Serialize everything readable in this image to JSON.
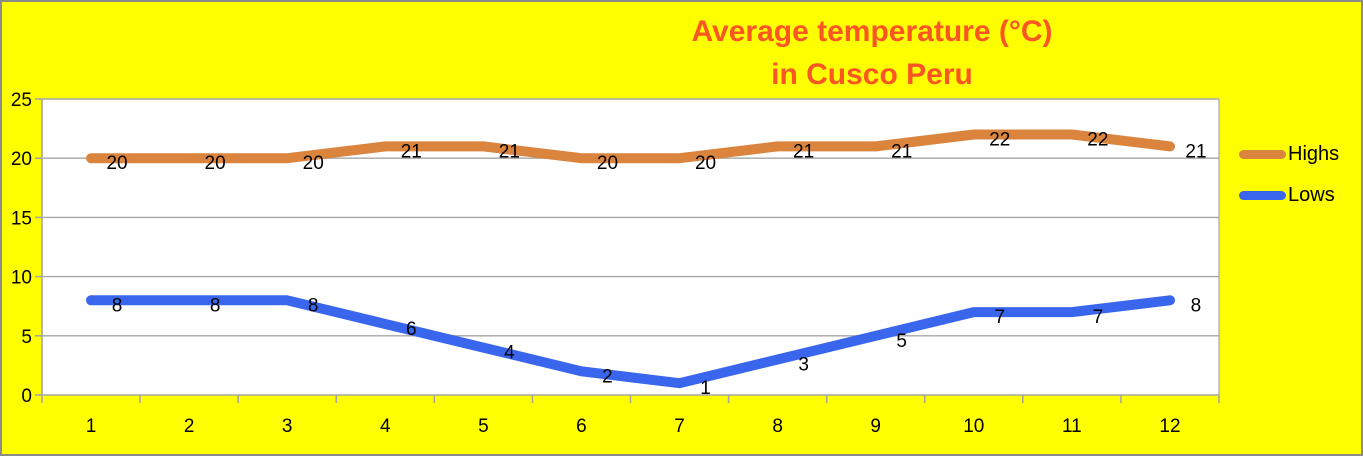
{
  "chart_data": {
    "type": "line",
    "title_lines": [
      "Average temperature (°C)",
      "in Cusco Peru"
    ],
    "title": "Average temperature (°C) in Cusco Peru",
    "categories": [
      "1",
      "2",
      "3",
      "4",
      "5",
      "6",
      "7",
      "8",
      "9",
      "10",
      "11",
      "12"
    ],
    "series": [
      {
        "name": "Highs",
        "color": "#DB843D",
        "values": [
          20,
          20,
          20,
          21,
          21,
          20,
          20,
          21,
          21,
          22,
          22,
          21
        ]
      },
      {
        "name": "Lows",
        "color": "#3A66ED",
        "values": [
          8,
          8,
          8,
          6,
          4,
          2,
          1,
          3,
          5,
          7,
          7,
          8
        ]
      }
    ],
    "yticks": [
      0,
      5,
      10,
      15,
      20,
      25
    ],
    "ylim": [
      0,
      25
    ],
    "xlabel": "",
    "ylabel": "",
    "grid": true,
    "data_labels": true,
    "legend_position": "right"
  },
  "colors": {
    "background": "#FFFF00",
    "frame_border": "#8C8C8C",
    "title": "#FA5523",
    "plot_background": "#FFFFFF",
    "gridline": "#A6A6A6",
    "axis_line": "#A6A6A6",
    "tick_label": "#000000",
    "data_label": "#000000",
    "legend_text": "#000000"
  }
}
